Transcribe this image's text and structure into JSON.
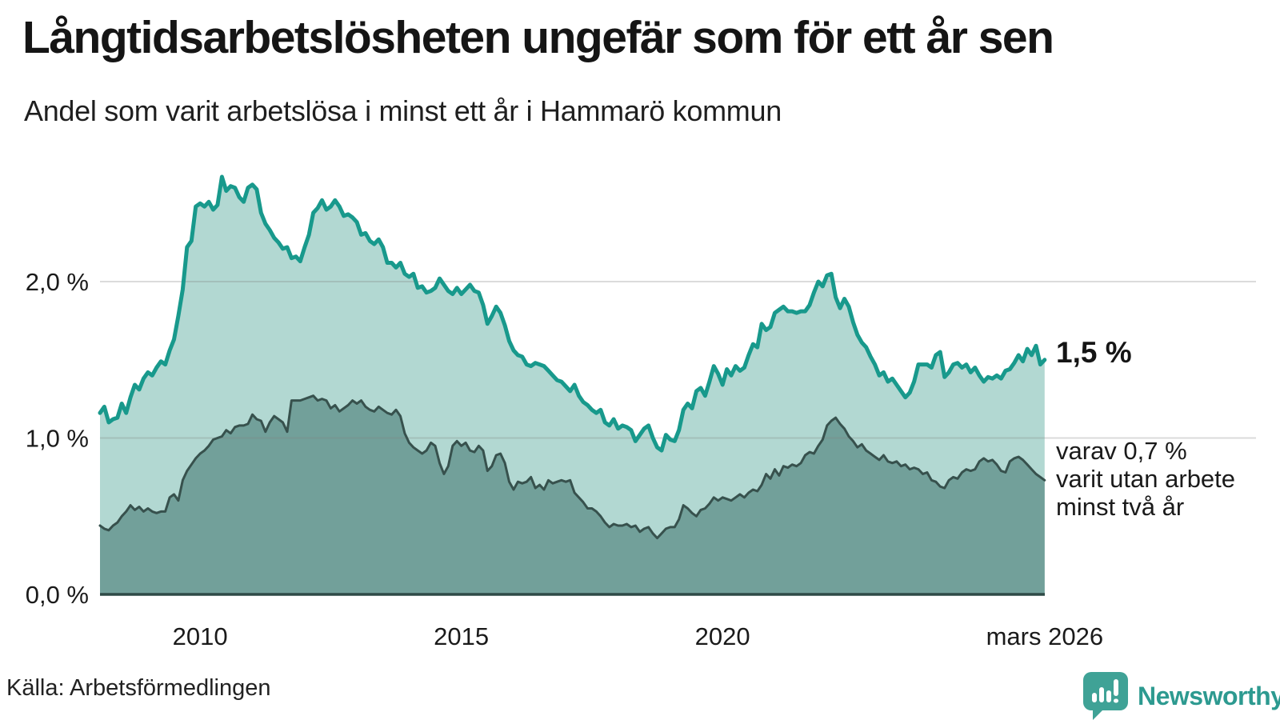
{
  "header": {
    "title": "Långtidsarbetslösheten ungefär som för ett år sen",
    "subtitle": "Andel som varit arbetslösa i minst ett år i Hammarö kommun"
  },
  "annotations": {
    "latest_total": "1,5 %",
    "secondary": [
      "varav 0,7 %",
      "varit utan arbete",
      "minst två år"
    ]
  },
  "footer": {
    "source": "Källa: Arbetsförmedlingen",
    "brand_name": "Newsworthy",
    "brand_icon": "newsworthy-chart-bubble-icon"
  },
  "colors": {
    "line_one_year": "#18998C",
    "fill_one_year": "#B2D8D2",
    "line_two_years": "#37514D",
    "fill_two_years": "#72A09A",
    "axis_line": "#2E4A46",
    "gridline": "rgba(125,125,125,0.28)",
    "text": "#1a1a1a",
    "brand_teal": "#3FA296"
  },
  "chart_data": {
    "type": "area",
    "title": "Långtidsarbetslösheten ungefär som för ett år sen",
    "subtitle": "Andel som varit arbetslösa i minst ett år i Hammarö kommun",
    "unit": "%",
    "x_start_year": 2008.0833,
    "x_step_months": 1,
    "x_end_label": "mars 2026",
    "ylim": [
      0,
      2.85
    ],
    "grid": "horizontal",
    "legend_position": "none",
    "y_ticks": [
      {
        "v": 0,
        "label": "0,0 %"
      },
      {
        "v": 1,
        "label": "1,0 %"
      },
      {
        "v": 2,
        "label": "2,0 %"
      }
    ],
    "x_ticks": [
      {
        "year": 2010,
        "label": "2010"
      },
      {
        "year": 2015,
        "label": "2015"
      },
      {
        "year": 2020,
        "label": "2020"
      },
      {
        "year": 2026.1667,
        "label": "mars 2026"
      }
    ],
    "series": [
      {
        "name": "Andel arbetslösa minst ett år",
        "latest_value": 1.5,
        "values": [
          1.16,
          1.2,
          1.1,
          1.12,
          1.13,
          1.22,
          1.16,
          1.26,
          1.34,
          1.31,
          1.38,
          1.42,
          1.4,
          1.45,
          1.49,
          1.47,
          1.56,
          1.63,
          1.78,
          1.95,
          2.22,
          2.26,
          2.48,
          2.5,
          2.48,
          2.51,
          2.46,
          2.49,
          2.67,
          2.58,
          2.61,
          2.6,
          2.54,
          2.51,
          2.6,
          2.62,
          2.59,
          2.44,
          2.37,
          2.33,
          2.28,
          2.25,
          2.21,
          2.22,
          2.15,
          2.16,
          2.13,
          2.22,
          2.3,
          2.44,
          2.47,
          2.52,
          2.46,
          2.48,
          2.52,
          2.48,
          2.42,
          2.43,
          2.41,
          2.38,
          2.3,
          2.31,
          2.26,
          2.24,
          2.27,
          2.22,
          2.12,
          2.12,
          2.09,
          2.12,
          2.05,
          2.03,
          2.05,
          1.96,
          1.97,
          1.93,
          1.94,
          1.96,
          2.02,
          1.98,
          1.94,
          1.92,
          1.96,
          1.92,
          1.95,
          1.98,
          1.94,
          1.93,
          1.85,
          1.73,
          1.78,
          1.84,
          1.8,
          1.72,
          1.62,
          1.56,
          1.53,
          1.52,
          1.47,
          1.46,
          1.48,
          1.47,
          1.46,
          1.43,
          1.4,
          1.37,
          1.36,
          1.33,
          1.3,
          1.34,
          1.27,
          1.23,
          1.21,
          1.18,
          1.16,
          1.18,
          1.1,
          1.08,
          1.12,
          1.06,
          1.08,
          1.07,
          1.05,
          0.98,
          1.02,
          1.06,
          1.08,
          1.0,
          0.94,
          0.92,
          1.02,
          0.99,
          0.98,
          1.05,
          1.18,
          1.22,
          1.19,
          1.3,
          1.32,
          1.27,
          1.36,
          1.46,
          1.41,
          1.34,
          1.44,
          1.4,
          1.46,
          1.43,
          1.45,
          1.53,
          1.6,
          1.58,
          1.73,
          1.69,
          1.71,
          1.8,
          1.82,
          1.84,
          1.81,
          1.81,
          1.8,
          1.81,
          1.81,
          1.85,
          1.93,
          2.0,
          1.97,
          2.04,
          2.05,
          1.9,
          1.83,
          1.89,
          1.84,
          1.74,
          1.66,
          1.61,
          1.58,
          1.52,
          1.47,
          1.4,
          1.42,
          1.36,
          1.38,
          1.34,
          1.3,
          1.26,
          1.29,
          1.36,
          1.47,
          1.47,
          1.47,
          1.45,
          1.53,
          1.55,
          1.39,
          1.42,
          1.47,
          1.48,
          1.45,
          1.47,
          1.42,
          1.45,
          1.4,
          1.36,
          1.39,
          1.38,
          1.4,
          1.38,
          1.43,
          1.44,
          1.48,
          1.53,
          1.49,
          1.57,
          1.53,
          1.59,
          1.47,
          1.5
        ]
      },
      {
        "name": "varav utan arbete minst två år",
        "latest_value": 0.7,
        "values": [
          0.44,
          0.42,
          0.41,
          0.44,
          0.46,
          0.5,
          0.53,
          0.57,
          0.54,
          0.56,
          0.53,
          0.55,
          0.53,
          0.52,
          0.53,
          0.53,
          0.62,
          0.64,
          0.6,
          0.73,
          0.79,
          0.83,
          0.87,
          0.9,
          0.92,
          0.95,
          0.99,
          1.0,
          1.01,
          1.05,
          1.03,
          1.07,
          1.08,
          1.08,
          1.09,
          1.15,
          1.12,
          1.11,
          1.04,
          1.1,
          1.14,
          1.12,
          1.1,
          1.04,
          1.24,
          1.24,
          1.24,
          1.25,
          1.26,
          1.27,
          1.24,
          1.25,
          1.24,
          1.19,
          1.21,
          1.17,
          1.19,
          1.21,
          1.24,
          1.22,
          1.24,
          1.2,
          1.18,
          1.17,
          1.2,
          1.18,
          1.16,
          1.15,
          1.18,
          1.14,
          1.03,
          0.97,
          0.94,
          0.92,
          0.9,
          0.92,
          0.97,
          0.95,
          0.84,
          0.77,
          0.82,
          0.95,
          0.98,
          0.95,
          0.97,
          0.92,
          0.91,
          0.95,
          0.92,
          0.79,
          0.82,
          0.89,
          0.9,
          0.84,
          0.72,
          0.67,
          0.72,
          0.71,
          0.72,
          0.75,
          0.68,
          0.7,
          0.67,
          0.73,
          0.71,
          0.72,
          0.73,
          0.72,
          0.73,
          0.65,
          0.62,
          0.59,
          0.55,
          0.55,
          0.53,
          0.5,
          0.46,
          0.43,
          0.45,
          0.44,
          0.44,
          0.45,
          0.43,
          0.44,
          0.4,
          0.42,
          0.43,
          0.39,
          0.36,
          0.39,
          0.42,
          0.43,
          0.43,
          0.48,
          0.57,
          0.55,
          0.52,
          0.5,
          0.54,
          0.55,
          0.58,
          0.62,
          0.6,
          0.62,
          0.61,
          0.6,
          0.62,
          0.64,
          0.62,
          0.65,
          0.67,
          0.66,
          0.7,
          0.77,
          0.74,
          0.8,
          0.76,
          0.82,
          0.81,
          0.83,
          0.82,
          0.84,
          0.89,
          0.91,
          0.9,
          0.95,
          0.99,
          1.08,
          1.11,
          1.13,
          1.09,
          1.06,
          1.01,
          0.98,
          0.94,
          0.96,
          0.92,
          0.9,
          0.88,
          0.86,
          0.89,
          0.85,
          0.84,
          0.85,
          0.82,
          0.83,
          0.8,
          0.81,
          0.8,
          0.77,
          0.78,
          0.73,
          0.72,
          0.69,
          0.68,
          0.73,
          0.75,
          0.74,
          0.78,
          0.8,
          0.79,
          0.8,
          0.85,
          0.87,
          0.85,
          0.86,
          0.83,
          0.79,
          0.78,
          0.85,
          0.87,
          0.88,
          0.86,
          0.83,
          0.8,
          0.77,
          0.75,
          0.73
        ]
      }
    ]
  }
}
